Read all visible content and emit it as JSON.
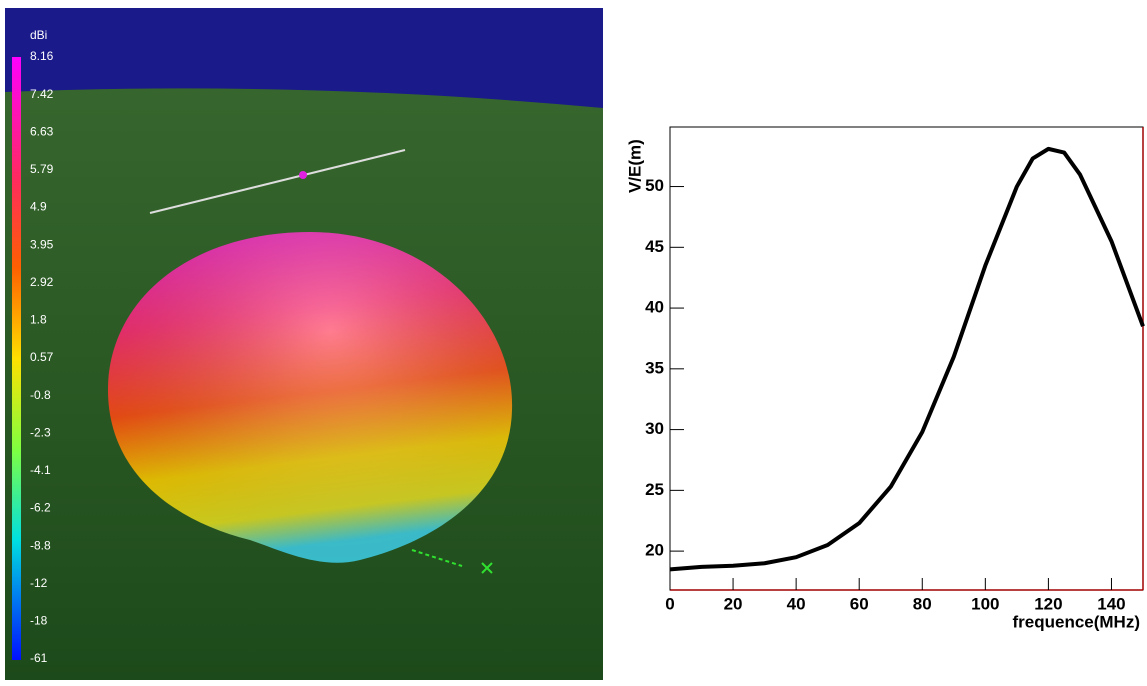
{
  "radiation_pattern": {
    "unit": "dBi",
    "scale_labels": [
      "8.16",
      "7.42",
      "6.63",
      "5.79",
      "4.9",
      "3.95",
      "2.92",
      "1.8",
      "0.57",
      "-0.8",
      "-2.3",
      "-4.1",
      "-6.2",
      "-8.8",
      "-12",
      "-18",
      "-61"
    ]
  },
  "chart_data": {
    "type": "line",
    "x_label": "frequence(MHz)",
    "y_label": "V/E(m)",
    "x": [
      0,
      10,
      20,
      30,
      40,
      50,
      60,
      70,
      80,
      90,
      100,
      110,
      115,
      120,
      125,
      130,
      140,
      150
    ],
    "series": [
      {
        "color": "#000000",
        "values": [
          18.5,
          18.7,
          18.8,
          19.0,
          19.5,
          20.5,
          22.3,
          25.3,
          29.8,
          36.0,
          43.5,
          50.0,
          52.3,
          53.1,
          52.8,
          51.0,
          45.5,
          38.5
        ]
      }
    ],
    "xlim": [
      0,
      150
    ],
    "ylim": [
      16.8,
      54.9
    ],
    "xticks": [
      0,
      20,
      40,
      60,
      80,
      100,
      120,
      140
    ],
    "yticks": [
      20,
      25,
      30,
      35,
      40,
      45,
      50
    ]
  }
}
